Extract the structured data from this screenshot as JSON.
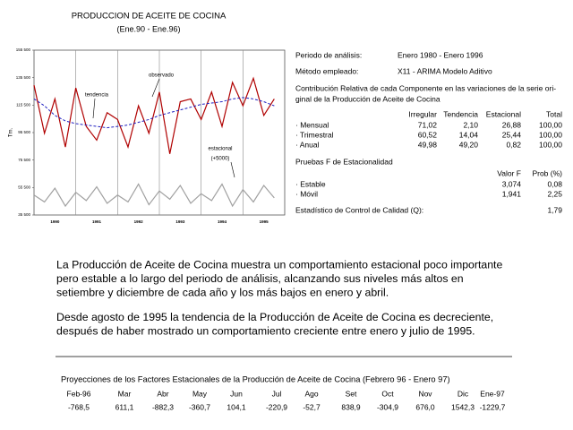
{
  "chart_data": {
    "type": "line",
    "title": "PRODUCCION DE ACEITE DE COCINA",
    "subtitle": "(Ene.90 - Ene.96)",
    "y_label": "Tm.",
    "categories": [
      "1990",
      "1991",
      "1992",
      "1993",
      "1994",
      "1995"
    ],
    "x": [
      1990,
      1990.25,
      1990.5,
      1990.75,
      1991,
      1991.25,
      1991.5,
      1991.75,
      1992,
      1992.25,
      1992.5,
      1992.75,
      1993,
      1993.25,
      1993.5,
      1993.75,
      1994,
      1994.25,
      1994.5,
      1994.75,
      1995,
      1995.25,
      1995.5,
      1995.75
    ],
    "xlim": [
      1990,
      1996
    ],
    "ylim": [
      35500,
      155500
    ],
    "yticks": [
      {
        "value": 35500,
        "label": "35 500"
      },
      {
        "value": 55500,
        "label": "55 500"
      },
      {
        "value": 75500,
        "label": "75 500"
      },
      {
        "value": 95500,
        "label": "95 500"
      },
      {
        "value": 115500,
        "label": "115 500"
      },
      {
        "value": 135500,
        "label": "135 500"
      },
      {
        "value": 155500,
        "label": "155 500"
      }
    ],
    "grid": false,
    "series": [
      {
        "name": "observado",
        "color": "#b00000",
        "dash": false,
        "values": [
          130000,
          95000,
          120000,
          85000,
          128000,
          100000,
          90000,
          110000,
          105000,
          85000,
          115000,
          95000,
          125000,
          80000,
          118000,
          120000,
          105000,
          125000,
          100000,
          132000,
          115000,
          135000,
          108000,
          120000
        ]
      },
      {
        "name": "tendencia",
        "color": "#2020c0",
        "dash": true,
        "values": [
          120000,
          115000,
          108000,
          104000,
          102000,
          101000,
          100000,
          99000,
          100000,
          101000,
          103000,
          105000,
          108000,
          110000,
          112000,
          114000,
          116000,
          117000,
          118000,
          120000,
          121000,
          120000,
          118000,
          115000
        ]
      },
      {
        "name": "estacional",
        "color": "#a0a0a0",
        "dash": false,
        "values": [
          50000,
          45000,
          55000,
          42000,
          52000,
          46000,
          56000,
          44000,
          50000,
          45000,
          58000,
          43000,
          53000,
          47000,
          57000,
          44000,
          51000,
          46000,
          58000,
          42000,
          54000,
          45000,
          57000,
          48000
        ]
      }
    ],
    "seasonal_note": "(+5000)"
  },
  "info": {
    "period": {
      "label": "Periodo de análisis:",
      "value": "Enero 1980 - Enero 1996"
    },
    "method": {
      "label": "Método empleado:",
      "value": "X11 - ARIMA Modelo Aditivo"
    },
    "contribution_title": [
      "Contribución Relativa de cada Componente en las variaciones de la serie ori-",
      "ginal de la Producción de Aceite de Cocina"
    ],
    "contribution_table": {
      "headers": [
        "Irregular",
        "Tendencia",
        "Estacional",
        "Total"
      ],
      "rows": [
        {
          "label": "· Mensual",
          "values": [
            "71,02",
            "2,10",
            "26,88",
            "100,00"
          ]
        },
        {
          "label": "· Trimestral",
          "values": [
            "60,52",
            "14,04",
            "25,44",
            "100,00"
          ]
        },
        {
          "label": "· Anual",
          "values": [
            "49,98",
            "49,20",
            "0,82",
            "100,00"
          ]
        }
      ]
    },
    "f_title": "Pruebas F de Estacionalidad",
    "f_table": {
      "headers": [
        "Valor F",
        "Prob (%)"
      ],
      "rows": [
        {
          "label": "· Estable",
          "values": [
            "3,074",
            "0,08"
          ]
        },
        {
          "label": "· Móvil",
          "values": [
            "1,941",
            "2,25"
          ]
        }
      ]
    },
    "quality": {
      "label": "Estadístico de Control de Calidad (Q):",
      "value": "1,79"
    }
  },
  "text": {
    "paragraphs": [
      [
        "La Producción de Aceite de Cocina muestra un comportamiento estacional poco importante",
        "pero estable a lo largo del periodo de análisis, alcanzando sus niveles  más altos en",
        "setiembre y diciembre de cada año y los más bajos en enero y abril."
      ],
      [
        "Desde agosto de 1995 la tendencia de la Producción de Aceite de Cocina es decreciente,",
        "después de haber mostrado un comportamiento creciente entre enero y julio de 1995."
      ]
    ]
  },
  "projections": {
    "title": "Proyecciones de los Factores Estacionales de la Producción de Aceite de Cocina (Febrero 96 - Enero 97)",
    "months": [
      "Feb-96",
      "Mar",
      "Abr",
      "May",
      "Jun",
      "Jul",
      "Ago",
      "Set",
      "Oct",
      "Nov",
      "Dic",
      "Ene-97"
    ],
    "values": [
      "-768,5",
      "611,1",
      "-882,3",
      "-360,7",
      "104,1",
      "-220,9",
      "-52,7",
      "838,9",
      "-304,9",
      "676,0",
      "1542,3",
      "-1229,7"
    ]
  }
}
